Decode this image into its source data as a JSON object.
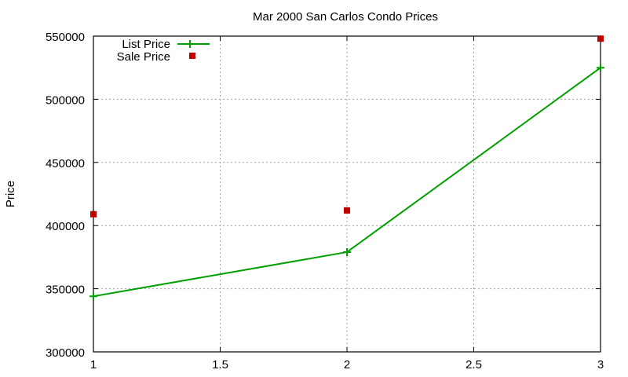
{
  "chart_data": {
    "type": "line",
    "title": "Mar 2000 San Carlos Condo Prices",
    "xlabel": "",
    "ylabel": "Price",
    "xlim": [
      1,
      3
    ],
    "ylim": [
      300000,
      550000
    ],
    "xticks": [
      "1",
      "1.5",
      "2",
      "2.5",
      "3"
    ],
    "yticks": [
      "300000",
      "350000",
      "400000",
      "450000",
      "500000",
      "550000"
    ],
    "grid": true,
    "legend_position": "top-left",
    "x": [
      1,
      2,
      3
    ],
    "series": [
      {
        "name": "List Price",
        "style": "line+points",
        "marker": "plus",
        "color": "#00a000",
        "values": [
          344000,
          379000,
          525000
        ]
      },
      {
        "name": "Sale Price",
        "style": "points",
        "marker": "square",
        "color": "#c00000",
        "values": [
          409000,
          412000,
          548000
        ]
      }
    ]
  }
}
